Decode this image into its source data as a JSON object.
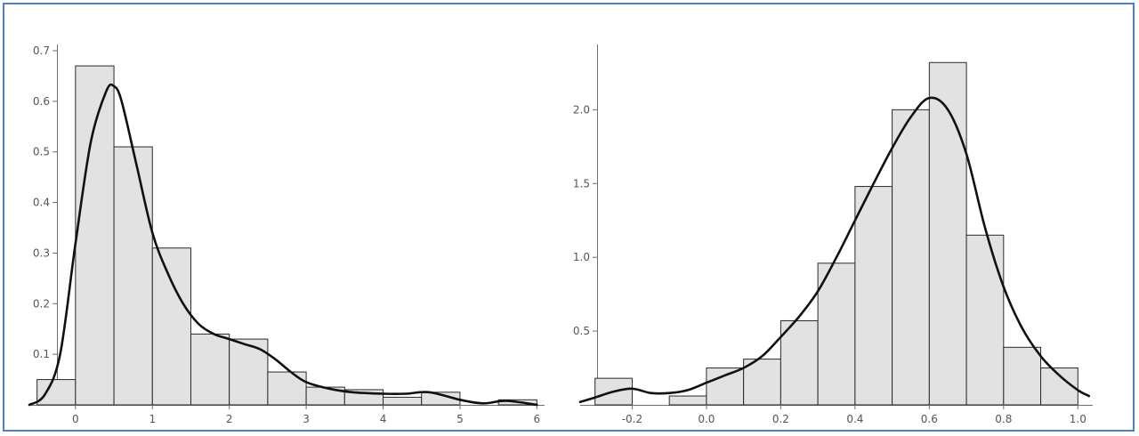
{
  "chart_data": [
    {
      "type": "bar",
      "bin_edges": [
        -0.5,
        0,
        0.5,
        1,
        1.5,
        2,
        2.5,
        3,
        3.5,
        4,
        4.5,
        5,
        5.5,
        6
      ],
      "values": [
        0.05,
        0.67,
        0.51,
        0.31,
        0.14,
        0.13,
        0.065,
        0.035,
        0.03,
        0.015,
        0.025,
        0.0,
        0.01
      ],
      "density_curve": {
        "x": [
          -0.6,
          -0.4,
          -0.2,
          0,
          0.2,
          0.4,
          0.5,
          0.6,
          0.8,
          1.0,
          1.2,
          1.4,
          1.6,
          1.8,
          2.0,
          2.2,
          2.4,
          2.6,
          2.8,
          3.0,
          3.3,
          3.6,
          4.0,
          4.3,
          4.6,
          5.0,
          5.3,
          5.6,
          6.0
        ],
        "y": [
          0.0,
          0.02,
          0.1,
          0.32,
          0.52,
          0.62,
          0.63,
          0.6,
          0.47,
          0.34,
          0.26,
          0.2,
          0.16,
          0.14,
          0.13,
          0.12,
          0.11,
          0.09,
          0.065,
          0.045,
          0.032,
          0.025,
          0.022,
          0.022,
          0.025,
          0.01,
          0.003,
          0.008,
          0.0
        ]
      },
      "xlim": [
        -0.6,
        6.1
      ],
      "ylim": [
        0,
        0.7
      ],
      "xticks": [
        "0",
        "1",
        "2",
        "3",
        "4",
        "5",
        "6"
      ],
      "yticks": [
        "0.1",
        "0.2",
        "0.3",
        "0.4",
        "0.5",
        "0.6",
        "0.7"
      ]
    },
    {
      "type": "bar",
      "bin_edges": [
        -0.3,
        -0.2,
        -0.1,
        0.0,
        0.1,
        0.2,
        0.3,
        0.4,
        0.5,
        0.6,
        0.7,
        0.8,
        0.9,
        1.0
      ],
      "values": [
        0.18,
        0.0,
        0.06,
        0.25,
        0.31,
        0.57,
        0.96,
        1.48,
        2.0,
        2.32,
        1.15,
        0.39,
        0.25
      ],
      "density_curve": {
        "x": [
          -0.34,
          -0.3,
          -0.25,
          -0.2,
          -0.15,
          -0.1,
          -0.05,
          0.0,
          0.05,
          0.1,
          0.15,
          0.2,
          0.25,
          0.3,
          0.35,
          0.4,
          0.45,
          0.5,
          0.55,
          0.6,
          0.65,
          0.7,
          0.75,
          0.8,
          0.85,
          0.9,
          0.95,
          1.0,
          1.03
        ],
        "y": [
          0.02,
          0.05,
          0.09,
          0.11,
          0.08,
          0.08,
          0.1,
          0.15,
          0.2,
          0.25,
          0.33,
          0.46,
          0.6,
          0.77,
          1.0,
          1.25,
          1.5,
          1.74,
          1.95,
          2.08,
          2.0,
          1.7,
          1.2,
          0.8,
          0.52,
          0.33,
          0.2,
          0.1,
          0.06
        ]
      },
      "xlim": [
        -0.34,
        1.04
      ],
      "ylim": [
        0,
        2.4
      ],
      "xticks": [
        "-0.2",
        "0.0",
        "0.2",
        "0.4",
        "0.6",
        "0.8",
        "1.0"
      ],
      "yticks": [
        "0.5",
        "1.0",
        "1.5",
        "2.0"
      ]
    }
  ],
  "colors": {
    "bar_fill": "#e2e2e2",
    "bar_edge": "#2a2a2a",
    "curve": "#111111",
    "frame": "#4f7fc8"
  }
}
